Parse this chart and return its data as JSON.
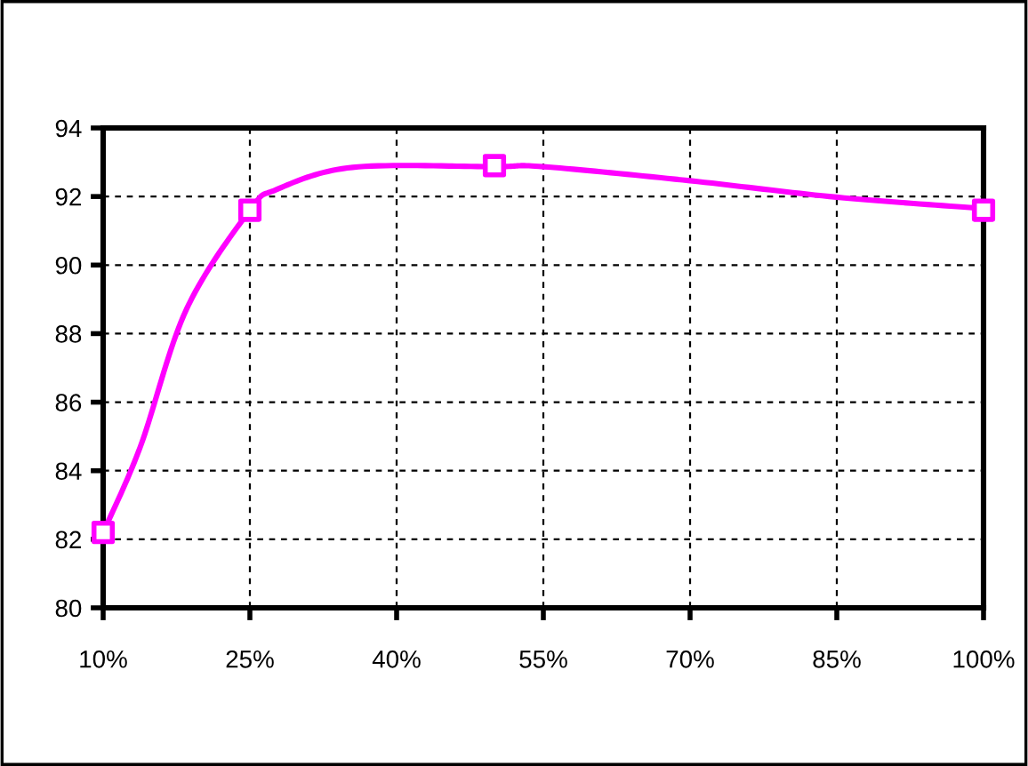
{
  "chart_data": {
    "type": "line",
    "series": [
      {
        "color": "#ff00ff",
        "marker": "none",
        "x": [
          10,
          13.8,
          18.5,
          25,
          27.7,
          35.5,
          50,
          55,
          70,
          85,
          100
        ],
        "values": [
          82.2,
          84.7,
          88.7,
          91.6,
          92.2,
          92.85,
          92.87,
          92.87,
          92.46,
          91.98,
          91.65
        ]
      },
      {
        "type": "scatter",
        "color": "#ff00ff",
        "marker": "square",
        "x": [
          10,
          25,
          50,
          100
        ],
        "values": [
          82.2,
          91.6,
          92.9,
          91.6
        ]
      }
    ],
    "xlim": [
      10,
      100
    ],
    "xticks": [
      {
        "value": 10,
        "label": "10%"
      },
      {
        "value": 25,
        "label": "25%"
      },
      {
        "value": 40,
        "label": "40%"
      },
      {
        "value": 55,
        "label": "55%"
      },
      {
        "value": 70,
        "label": "70%"
      },
      {
        "value": 85,
        "label": "85%"
      },
      {
        "value": 100,
        "label": "100%"
      }
    ],
    "ylim": [
      80,
      94
    ],
    "yticks": [
      80,
      82,
      84,
      86,
      88,
      90,
      92,
      94
    ],
    "grid": true,
    "legend": false
  }
}
